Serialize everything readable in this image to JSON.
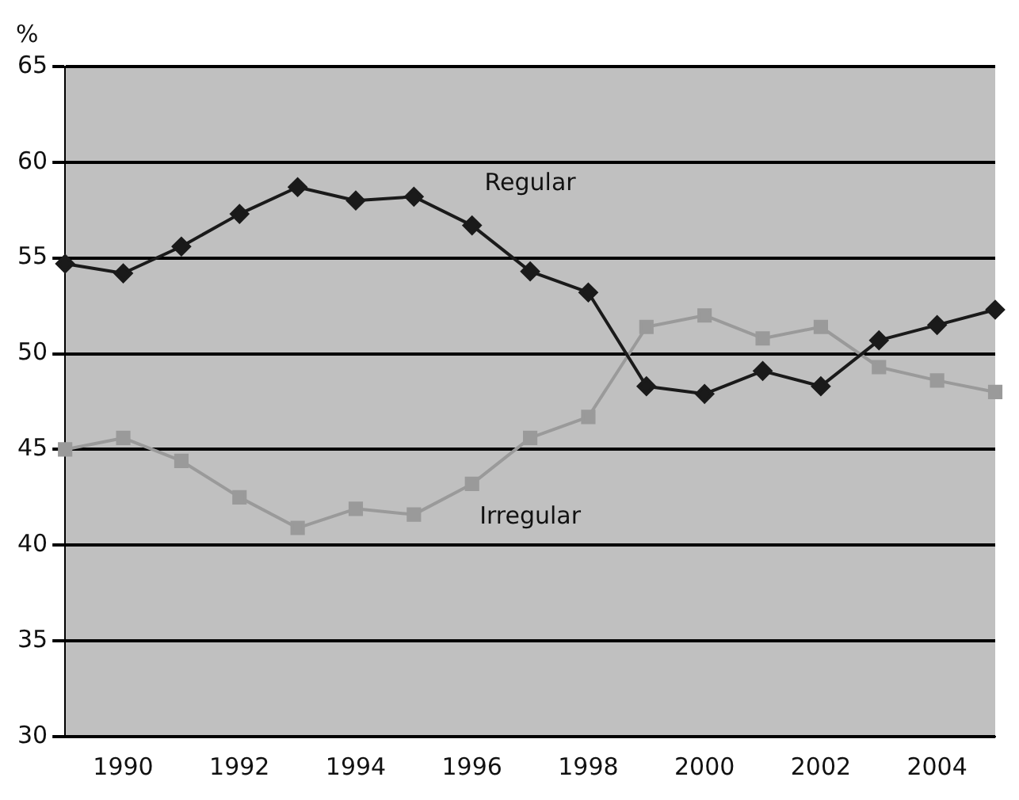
{
  "chart_data": {
    "type": "line",
    "ylabel": "%",
    "x": [
      1989,
      1990,
      1991,
      1992,
      1993,
      1994,
      1995,
      1996,
      1997,
      1998,
      1999,
      2000,
      2001,
      2002,
      2003,
      2004,
      2005
    ],
    "series": [
      {
        "name": "Regular",
        "color": "#1a1a1a",
        "marker": "diamond",
        "values": [
          54.7,
          54.2,
          55.6,
          57.3,
          58.7,
          58.0,
          58.2,
          56.7,
          54.3,
          53.2,
          48.3,
          47.9,
          49.1,
          48.3,
          50.7,
          51.5,
          52.3
        ]
      },
      {
        "name": "Irregular",
        "color": "#9a9a9a",
        "marker": "square",
        "values": [
          45.0,
          45.6,
          44.4,
          42.5,
          40.9,
          41.9,
          41.6,
          43.2,
          45.6,
          46.7,
          51.4,
          52.0,
          50.8,
          51.4,
          49.3,
          48.6,
          48.0
        ]
      }
    ],
    "xlim": [
      1989,
      2005
    ],
    "xticks": [
      1990,
      1992,
      1994,
      1996,
      1998,
      2000,
      2002,
      2004
    ],
    "ylim": [
      30,
      65
    ],
    "yticks": [
      30,
      35,
      40,
      45,
      50,
      55,
      60,
      65
    ],
    "grid": "y",
    "legend": false
  }
}
